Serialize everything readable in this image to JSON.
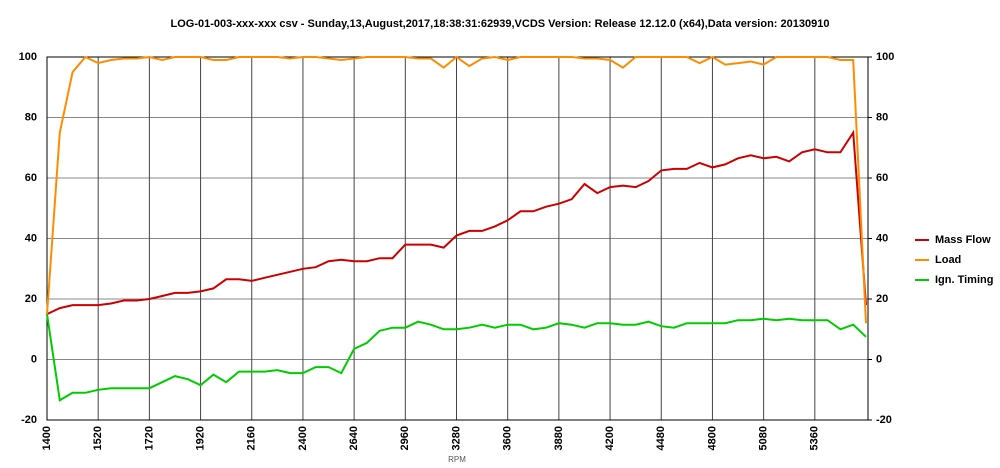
{
  "chart_data": {
    "type": "line",
    "title": "LOG-01-003-xxx-xxx csv - Sunday,13,August,2017,18:38:31:62939,VCDS Version: Release 12.12.0 (x64),Data version: 20130910",
    "x_label": "RPM",
    "categories": [
      "1400",
      null,
      null,
      null,
      "1520",
      null,
      null,
      null,
      "1720",
      null,
      null,
      null,
      "1920",
      null,
      null,
      null,
      "2160",
      null,
      null,
      null,
      "2400",
      null,
      null,
      null,
      "2640",
      null,
      null,
      null,
      "2960",
      null,
      null,
      null,
      "3280",
      null,
      null,
      null,
      "3600",
      null,
      null,
      null,
      "3880",
      null,
      null,
      null,
      "4200",
      null,
      null,
      null,
      "4480",
      null,
      null,
      null,
      "4800",
      null,
      null,
      null,
      "5080",
      null,
      null,
      null,
      "5360",
      null,
      null,
      null,
      null
    ],
    "series": [
      {
        "name": "Mass Flow",
        "color": "#cc0000",
        "values": [
          15,
          17,
          18,
          18,
          18,
          18.5,
          19.5,
          19.5,
          20,
          21,
          22,
          22,
          22.5,
          23.5,
          26.5,
          26.5,
          26,
          27,
          28,
          29,
          30,
          30.5,
          32.5,
          33,
          32.5,
          32.5,
          33.5,
          33.5,
          38,
          38,
          38,
          37,
          41,
          42.5,
          42.5,
          44,
          46,
          49,
          49,
          50.5,
          51.5,
          53,
          58,
          55,
          57,
          57.5,
          57,
          59,
          62.5,
          63,
          63,
          65,
          63.5,
          64.5,
          66.5,
          67.5,
          66.5,
          67,
          65.5,
          68.5,
          69.5,
          68.5,
          68.5,
          75,
          18
        ]
      },
      {
        "name": "Load",
        "color": "#ff8c00",
        "values": [
          15,
          75,
          95,
          100,
          98,
          99,
          99.5,
          99.5,
          100,
          99,
          100,
          100,
          100,
          99,
          99,
          100,
          100,
          100,
          100,
          99.5,
          100,
          100,
          99.5,
          99,
          99.5,
          100,
          100,
          100,
          100,
          99.5,
          99.5,
          96.5,
          100,
          97,
          99.5,
          100,
          99,
          100,
          100,
          100,
          100,
          100,
          99.5,
          99.5,
          99,
          96.5,
          100,
          100,
          100,
          100,
          100,
          98,
          100,
          97.5,
          98,
          98.5,
          97.5,
          100,
          100,
          100,
          100,
          100,
          99,
          99,
          12
        ]
      },
      {
        "name": "Ign. Timing",
        "color": "#00cc00",
        "values": [
          15,
          -13.5,
          -11,
          -11,
          -10,
          -9.5,
          -9.5,
          -9.5,
          -9.5,
          -7.5,
          -5.5,
          -6.5,
          -8.5,
          -5,
          -7.5,
          -4,
          -4,
          -4,
          -3.5,
          -4.5,
          -4.5,
          -2.5,
          -2.5,
          -4.5,
          3.5,
          5.5,
          9.5,
          10.5,
          10.5,
          12.5,
          11.5,
          10,
          10,
          10.5,
          11.5,
          10.5,
          11.5,
          11.5,
          10,
          10.5,
          12,
          11.5,
          10.5,
          12,
          12,
          11.5,
          11.5,
          12.5,
          11,
          10.5,
          12,
          12,
          12,
          12,
          13,
          13,
          13.5,
          13,
          13.5,
          13,
          13,
          13,
          10,
          11.5,
          7.5
        ]
      }
    ],
    "ylim": [
      -20,
      100
    ],
    "yticks": [
      -20,
      0,
      20,
      40,
      60,
      80,
      100
    ],
    "y2lim": [
      -20,
      100
    ],
    "y2ticks": [
      -20,
      0,
      20,
      40,
      60,
      80,
      100
    ],
    "grid": true,
    "legend": "right"
  }
}
